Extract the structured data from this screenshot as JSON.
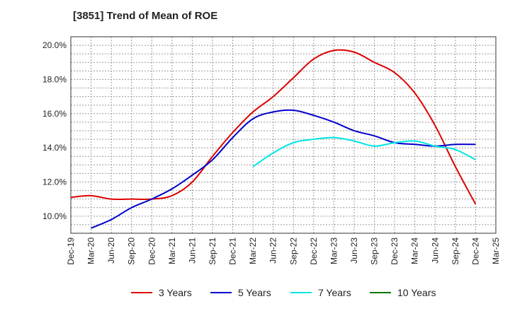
{
  "chart_data": {
    "type": "line",
    "title": "[3851]  Trend of Mean of ROE",
    "xlabel": "",
    "ylabel": "",
    "ylim": [
      9.0,
      20.5
    ],
    "x_categories": [
      "Dec-19",
      "Mar-20",
      "Jun-20",
      "Sep-20",
      "Dec-20",
      "Mar-21",
      "Jun-21",
      "Sep-21",
      "Dec-21",
      "Mar-22",
      "Jun-22",
      "Sep-22",
      "Dec-22",
      "Mar-23",
      "Jun-23",
      "Sep-23",
      "Dec-23",
      "Mar-24",
      "Jun-24",
      "Sep-24",
      "Dec-24",
      "Mar-25"
    ],
    "y_ticks": [
      10,
      12,
      14,
      16,
      18,
      20
    ],
    "y_tick_labels": [
      "10.0%",
      "12.0%",
      "14.0%",
      "16.0%",
      "18.0%",
      "20.0%"
    ],
    "grid": true,
    "legend_position": "bottom",
    "series": [
      {
        "name": "3 Years",
        "color": "#dd0000",
        "values": [
          11.1,
          11.2,
          11.0,
          11.0,
          11.0,
          11.2,
          12.0,
          13.5,
          14.9,
          16.1,
          17.0,
          18.1,
          19.2,
          19.7,
          19.6,
          19.0,
          18.4,
          17.2,
          15.3,
          12.9,
          10.7,
          null
        ]
      },
      {
        "name": "5 Years",
        "color": "#0000cc",
        "values": [
          null,
          9.3,
          9.8,
          10.5,
          11.0,
          11.6,
          12.4,
          13.3,
          14.6,
          15.7,
          16.1,
          16.2,
          15.9,
          15.5,
          15.0,
          14.7,
          14.3,
          14.2,
          14.1,
          14.2,
          14.2,
          null
        ]
      },
      {
        "name": "7 Years",
        "color": "#00e5e5",
        "values": [
          null,
          null,
          null,
          null,
          null,
          null,
          null,
          null,
          null,
          12.9,
          13.7,
          14.3,
          14.5,
          14.6,
          14.4,
          14.1,
          14.3,
          14.4,
          14.1,
          13.9,
          13.3,
          null
        ]
      },
      {
        "name": "10 Years",
        "color": "#007700",
        "values": [
          null,
          null,
          null,
          null,
          null,
          null,
          null,
          null,
          null,
          null,
          null,
          null,
          null,
          null,
          null,
          null,
          null,
          null,
          null,
          null,
          null,
          null
        ]
      }
    ]
  }
}
